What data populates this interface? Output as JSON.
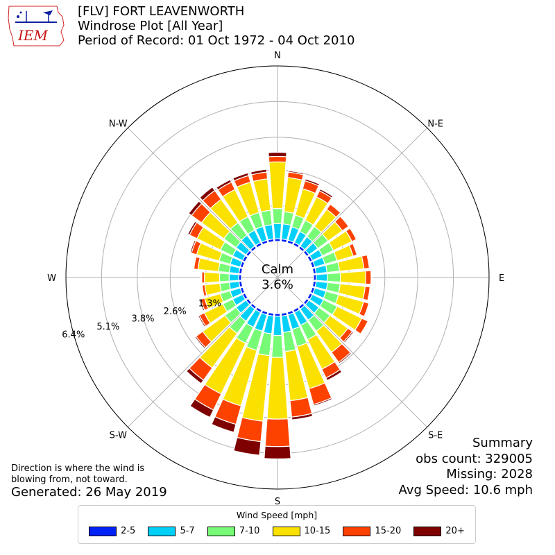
{
  "header": {
    "line1": "[FLV] FORT LEAVENWORTH",
    "line2": "Windrose Plot [All Year]",
    "line3": "Period of Record: 01 Oct 1972 - 04 Oct 2010"
  },
  "logo": {
    "text": "IEM"
  },
  "summary": {
    "title": "Summary",
    "obs": "obs count: 329005",
    "missing": "Missing: 2028",
    "avg": "Avg Speed: 10.6 mph"
  },
  "note": {
    "line1": "Direction is where the wind is",
    "line2": "blowing from, not toward.",
    "generated": "Generated: 26 May 2019"
  },
  "chart_data": {
    "type": "windrose",
    "center_label": {
      "line1": "Calm",
      "line2": "3.6%"
    },
    "calm_percent": 3.6,
    "compass_labels": {
      "N": "N",
      "NE": "N-E",
      "E": "E",
      "SE": "S-E",
      "S": "S",
      "SW": "S-W",
      "W": "W",
      "NW": "N-W"
    },
    "radial_ticks": [
      {
        "value": 1.3,
        "label": "1.3%"
      },
      {
        "value": 2.6,
        "label": "2.6%"
      },
      {
        "value": 3.8,
        "label": "3.8%"
      },
      {
        "value": 5.1,
        "label": "5.1%"
      },
      {
        "value": 6.4,
        "label": "6.4%"
      }
    ],
    "r_max": 6.4,
    "legend_title": "Wind Speed [mph]",
    "bins": [
      {
        "label": "2-5",
        "color": "#0022f5"
      },
      {
        "label": "5-7",
        "color": "#00cff8"
      },
      {
        "label": "7-10",
        "color": "#77fb76"
      },
      {
        "label": "10-15",
        "color": "#fbe100"
      },
      {
        "label": "15-20",
        "color": "#fd4200"
      },
      {
        "label": "20+",
        "color": "#7e0000"
      }
    ],
    "directions": [
      0,
      10,
      20,
      30,
      40,
      50,
      60,
      70,
      80,
      90,
      100,
      110,
      120,
      130,
      140,
      150,
      160,
      170,
      180,
      190,
      200,
      210,
      220,
      230,
      240,
      250,
      260,
      270,
      280,
      290,
      300,
      310,
      320,
      330,
      340,
      350
    ],
    "cumulative": [
      [
        0.1,
        0.65,
        1.2,
        2.9,
        3.1,
        3.25
      ],
      [
        0.1,
        0.65,
        1.1,
        2.35,
        2.55,
        2.6
      ],
      [
        0.1,
        0.6,
        1.05,
        2.05,
        2.35,
        2.42
      ],
      [
        0.1,
        0.55,
        1.0,
        1.95,
        2.2,
        2.27
      ],
      [
        0.1,
        0.52,
        0.98,
        1.75,
        1.98,
        2.0
      ],
      [
        0.1,
        0.5,
        0.96,
        1.6,
        1.88,
        1.9
      ],
      [
        0.1,
        0.5,
        0.95,
        1.7,
        1.88,
        1.9
      ],
      [
        0.1,
        0.48,
        0.94,
        1.55,
        1.7,
        1.72
      ],
      [
        0.1,
        0.5,
        0.96,
        1.85,
        2.05,
        2.08
      ],
      [
        0.1,
        0.5,
        0.98,
        1.9,
        2.1,
        2.12
      ],
      [
        0.1,
        0.52,
        0.98,
        1.9,
        2.08,
        2.1
      ],
      [
        0.1,
        0.52,
        1.0,
        1.95,
        2.15,
        2.17
      ],
      [
        0.1,
        0.55,
        1.1,
        2.1,
        2.35,
        2.38
      ],
      [
        0.1,
        0.55,
        1.05,
        1.85,
        2.05,
        2.1
      ],
      [
        0.1,
        0.6,
        1.1,
        2.05,
        2.5,
        2.55
      ],
      [
        0.1,
        0.62,
        1.2,
        2.4,
        2.75,
        2.85
      ],
      [
        0.1,
        0.65,
        1.3,
        2.9,
        3.5,
        3.55
      ],
      [
        0.1,
        0.7,
        1.4,
        3.2,
        3.8,
        3.9
      ],
      [
        0.1,
        0.8,
        1.6,
        3.85,
        4.85,
        5.3
      ],
      [
        0.1,
        0.75,
        1.55,
        3.95,
        4.7,
        5.2
      ],
      [
        0.1,
        0.72,
        1.45,
        3.55,
        4.25,
        4.55
      ],
      [
        0.1,
        0.7,
        1.35,
        3.4,
        4.05,
        4.35
      ],
      [
        0.1,
        0.65,
        1.2,
        2.75,
        3.3,
        3.45
      ],
      [
        0.1,
        0.55,
        1.05,
        2.05,
        2.35,
        2.4
      ],
      [
        0.1,
        0.5,
        0.9,
        1.65,
        1.85,
        1.9
      ],
      [
        0.1,
        0.48,
        0.85,
        1.45,
        1.6,
        1.65
      ],
      [
        0.1,
        0.45,
        0.8,
        1.35,
        1.45,
        1.48
      ],
      [
        0.1,
        0.45,
        0.8,
        1.35,
        1.45,
        1.48
      ],
      [
        0.1,
        0.45,
        0.85,
        1.6,
        1.75,
        1.78
      ],
      [
        0.1,
        0.48,
        0.9,
        1.75,
        1.95,
        2.0
      ],
      [
        0.1,
        0.5,
        1.0,
        1.95,
        2.25,
        2.32
      ],
      [
        0.1,
        0.55,
        1.1,
        2.1,
        2.55,
        2.68
      ],
      [
        0.1,
        0.58,
        1.15,
        2.2,
        2.6,
        2.75
      ],
      [
        0.1,
        0.6,
        1.15,
        2.25,
        2.55,
        2.65
      ],
      [
        0.1,
        0.62,
        1.15,
        2.3,
        2.55,
        2.65
      ],
      [
        0.1,
        0.62,
        1.15,
        2.3,
        2.55,
        2.65
      ]
    ]
  }
}
